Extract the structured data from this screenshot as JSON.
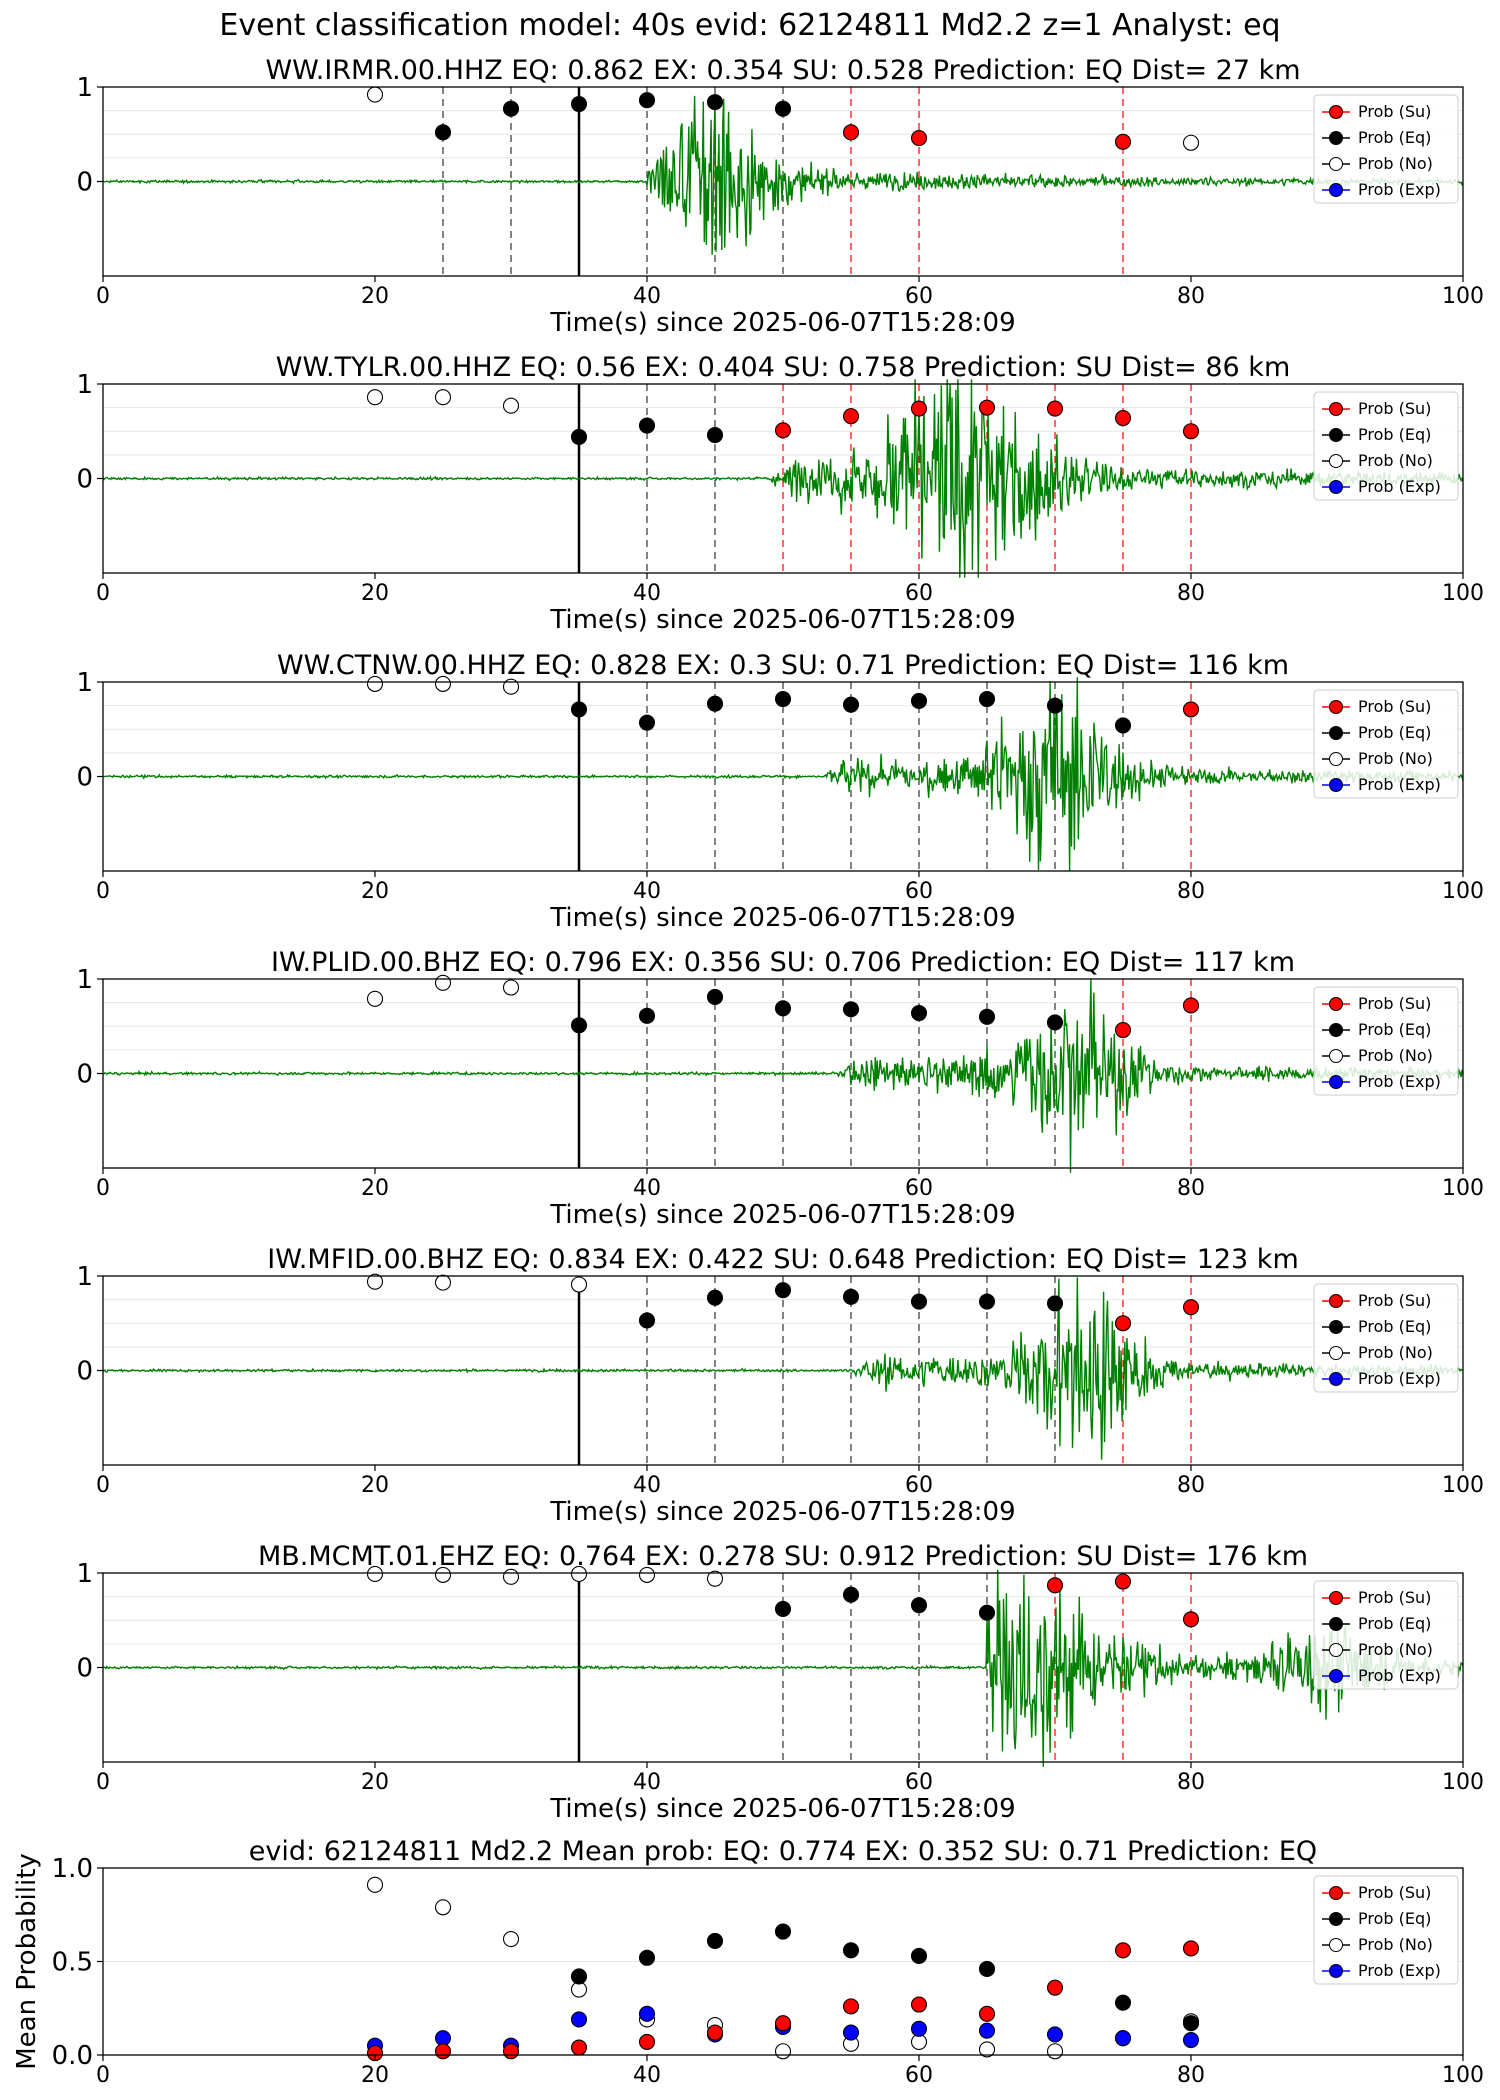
{
  "suptitle": "Event classification model: 40s evid: 62124811 Md2.2 z=1 Analyst: eq",
  "colors": {
    "waveform": "#008000",
    "su": "#ff0000",
    "eq": "#000000",
    "no": "#ffffff",
    "exp": "#0000ff"
  },
  "chart_data": [
    {
      "type": "scatter",
      "station": "WW.IRMR.00.HHZ",
      "title": "WW.IRMR.00.HHZ   EQ: 0.862  EX: 0.354  SU: 0.528   Prediction: EQ    Dist= 27 km",
      "xlabel": "Time(s) since 2025-06-07T15:28:09",
      "xlim": [
        0,
        100
      ],
      "ylim": [
        -1,
        1
      ],
      "xticks": [
        "0",
        "20",
        "40",
        "60",
        "80",
        "100"
      ],
      "yticks": [
        "1",
        "0"
      ],
      "window_start_line": 35,
      "waveform": {
        "onset": 40,
        "peak_t": 45,
        "amp": 0.9,
        "decay": 8
      },
      "series": [
        {
          "name": "Prob (Su)",
          "x": [
            55,
            60,
            75
          ],
          "y": [
            0.52,
            0.46,
            0.42
          ]
        },
        {
          "name": "Prob (Eq)",
          "x": [
            25,
            35,
            30,
            40,
            45,
            50
          ],
          "y": [
            0.52,
            0.82,
            0.77,
            0.86,
            0.84,
            0.77
          ]
        },
        {
          "name": "Prob (No)",
          "x": [
            20,
            80
          ],
          "y": [
            0.92,
            0.41
          ]
        },
        {
          "name": "Prob (Exp)",
          "x": [],
          "y": []
        }
      ]
    },
    {
      "type": "scatter",
      "station": "WW.TYLR.00.HHZ",
      "title": "WW.TYLR.00.HHZ   EQ: 0.56  EX: 0.404  SU: 0.758   Prediction: SU    Dist= 86 km",
      "xlabel": "Time(s) since 2025-06-07T15:28:09",
      "xlim": [
        0,
        100
      ],
      "ylim": [
        -1,
        1
      ],
      "xticks": [
        "0",
        "20",
        "40",
        "60",
        "80",
        "100"
      ],
      "yticks": [
        "1",
        "0"
      ],
      "window_start_line": 35,
      "waveform": {
        "onset": 49,
        "peak_t": 63,
        "amp": 1.0,
        "decay": 14
      },
      "series": [
        {
          "name": "Prob (Su)",
          "x": [
            50,
            55,
            60,
            65,
            70,
            75,
            80
          ],
          "y": [
            0.51,
            0.66,
            0.74,
            0.75,
            0.74,
            0.64,
            0.5
          ]
        },
        {
          "name": "Prob (Eq)",
          "x": [
            35,
            40,
            45
          ],
          "y": [
            0.44,
            0.56,
            0.46
          ]
        },
        {
          "name": "Prob (No)",
          "x": [
            20,
            25,
            30
          ],
          "y": [
            0.86,
            0.86,
            0.77
          ]
        },
        {
          "name": "Prob (Exp)",
          "x": [],
          "y": []
        }
      ]
    },
    {
      "type": "scatter",
      "station": "WW.CTNW.00.HHZ",
      "title": "WW.CTNW.00.HHZ   EQ: 0.828  EX: 0.3  SU: 0.71   Prediction: EQ    Dist= 116 km",
      "xlabel": "Time(s) since 2025-06-07T15:28:09",
      "xlim": [
        0,
        100
      ],
      "ylim": [
        -1,
        1
      ],
      "xticks": [
        "0",
        "20",
        "40",
        "60",
        "80",
        "100"
      ],
      "yticks": [
        "1",
        "0"
      ],
      "window_start_line": 35,
      "waveform": {
        "onset": 53,
        "peak_t": 70,
        "amp": 0.95,
        "decay": 10
      },
      "series": [
        {
          "name": "Prob (Su)",
          "x": [
            80
          ],
          "y": [
            0.71
          ]
        },
        {
          "name": "Prob (Eq)",
          "x": [
            35,
            40,
            45,
            50,
            55,
            60,
            65,
            70,
            75
          ],
          "y": [
            0.71,
            0.57,
            0.77,
            0.82,
            0.76,
            0.8,
            0.82,
            0.75,
            0.54
          ]
        },
        {
          "name": "Prob (No)",
          "x": [
            20,
            25,
            30
          ],
          "y": [
            0.98,
            0.98,
            0.95
          ]
        },
        {
          "name": "Prob (Exp)",
          "x": [],
          "y": []
        }
      ]
    },
    {
      "type": "scatter",
      "station": "IW.PLID.00.BHZ",
      "title": "IW.PLID.00.BHZ   EQ: 0.796  EX: 0.356  SU: 0.706   Prediction: EQ    Dist= 117 km",
      "xlabel": "Time(s) since 2025-06-07T15:28:09",
      "xlim": [
        0,
        100
      ],
      "ylim": [
        -1,
        1
      ],
      "xticks": [
        "0",
        "20",
        "40",
        "60",
        "80",
        "100"
      ],
      "yticks": [
        "1",
        "0"
      ],
      "window_start_line": 35,
      "waveform": {
        "onset": 54,
        "peak_t": 71,
        "amp": 0.7,
        "decay": 10
      },
      "series": [
        {
          "name": "Prob (Su)",
          "x": [
            75,
            80
          ],
          "y": [
            0.46,
            0.72
          ]
        },
        {
          "name": "Prob (Eq)",
          "x": [
            35,
            40,
            45,
            50,
            55,
            60,
            65,
            70
          ],
          "y": [
            0.51,
            0.61,
            0.81,
            0.69,
            0.68,
            0.64,
            0.6,
            0.54
          ]
        },
        {
          "name": "Prob (No)",
          "x": [
            20,
            25,
            30
          ],
          "y": [
            0.79,
            0.96,
            0.91
          ]
        },
        {
          "name": "Prob (Exp)",
          "x": [],
          "y": []
        }
      ]
    },
    {
      "type": "scatter",
      "station": "IW.MFID.00.BHZ",
      "title": "IW.MFID.00.BHZ   EQ: 0.834  EX: 0.422  SU: 0.648   Prediction: EQ    Dist= 123 km",
      "xlabel": "Time(s) since 2025-06-07T15:28:09",
      "xlim": [
        0,
        100
      ],
      "ylim": [
        -1,
        1
      ],
      "xticks": [
        "0",
        "20",
        "40",
        "60",
        "80",
        "100"
      ],
      "yticks": [
        "1",
        "0"
      ],
      "window_start_line": 35,
      "waveform": {
        "onset": 55,
        "peak_t": 72,
        "amp": 0.85,
        "decay": 9
      },
      "series": [
        {
          "name": "Prob (Su)",
          "x": [
            75,
            80
          ],
          "y": [
            0.5,
            0.67
          ]
        },
        {
          "name": "Prob (Eq)",
          "x": [
            40,
            45,
            50,
            55,
            60,
            65,
            70
          ],
          "y": [
            0.53,
            0.77,
            0.85,
            0.78,
            0.73,
            0.73,
            0.71
          ]
        },
        {
          "name": "Prob (No)",
          "x": [
            20,
            25,
            35
          ],
          "y": [
            0.94,
            0.93,
            0.91
          ]
        },
        {
          "name": "Prob (Exp)",
          "x": [],
          "y": []
        }
      ]
    },
    {
      "type": "scatter",
      "station": "MB.MCMT.01.EHZ",
      "title": "MB.MCMT.01.EHZ   EQ: 0.764  EX: 0.278  SU: 0.912   Prediction: SU    Dist= 176 km",
      "xlabel": "Time(s) since 2025-06-07T15:28:09",
      "xlim": [
        0,
        100
      ],
      "ylim": [
        -1,
        1
      ],
      "xticks": [
        "0",
        "20",
        "40",
        "60",
        "80",
        "100"
      ],
      "yticks": [
        "1",
        "0"
      ],
      "window_start_line": 35,
      "waveform": {
        "onset": 65,
        "peak_t": 67,
        "amp": 0.9,
        "decay": 14,
        "late_burst": 90
      },
      "series": [
        {
          "name": "Prob (Su)",
          "x": [
            70,
            75,
            80
          ],
          "y": [
            0.87,
            0.91,
            0.51
          ]
        },
        {
          "name": "Prob (Eq)",
          "x": [
            50,
            55,
            60,
            65
          ],
          "y": [
            0.62,
            0.77,
            0.66,
            0.58
          ]
        },
        {
          "name": "Prob (No)",
          "x": [
            20,
            25,
            30,
            35,
            40,
            45
          ],
          "y": [
            0.99,
            0.98,
            0.96,
            0.99,
            0.98,
            0.94
          ]
        },
        {
          "name": "Prob (Exp)",
          "x": [],
          "y": []
        }
      ]
    },
    {
      "type": "scatter",
      "title": "evid: 62124811  Md2.2   Mean prob:   EQ: 0.774  EX: 0.352  SU: 0.71   Prediction: EQ",
      "xlabel": "",
      "ylabel": "Mean Probability",
      "xlim": [
        0,
        100
      ],
      "ylim": [
        0,
        1
      ],
      "xticks": [
        "0",
        "20",
        "40",
        "60",
        "80",
        "100"
      ],
      "yticks": [
        "1.0",
        "0.5",
        "0.0"
      ],
      "series": [
        {
          "name": "Prob (Su)",
          "x": [
            20,
            25,
            30,
            35,
            40,
            45,
            50,
            55,
            60,
            65,
            70,
            75,
            80
          ],
          "y": [
            0.01,
            0.02,
            0.02,
            0.04,
            0.07,
            0.12,
            0.17,
            0.26,
            0.27,
            0.22,
            0.36,
            0.56,
            0.57
          ]
        },
        {
          "name": "Prob (Eq)",
          "x": [
            35,
            40,
            45,
            50,
            55,
            60,
            65,
            75,
            80
          ],
          "y": [
            0.42,
            0.52,
            0.61,
            0.66,
            0.56,
            0.53,
            0.46,
            0.28,
            0.17
          ]
        },
        {
          "name": "Prob (No)",
          "x": [
            20,
            25,
            30,
            35,
            40,
            45,
            50,
            55,
            60,
            65,
            70,
            75,
            80
          ],
          "y": [
            0.91,
            0.79,
            0.62,
            0.35,
            0.19,
            0.16,
            0.02,
            0.06,
            0.07,
            0.03,
            0.02,
            0.09,
            0.18
          ]
        },
        {
          "name": "Prob (Exp)",
          "x": [
            20,
            25,
            30,
            35,
            40,
            45,
            50,
            55,
            60,
            65,
            70,
            75,
            80
          ],
          "y": [
            0.05,
            0.09,
            0.05,
            0.19,
            0.22,
            0.11,
            0.15,
            0.12,
            0.14,
            0.13,
            0.11,
            0.09,
            0.08
          ]
        }
      ]
    }
  ]
}
